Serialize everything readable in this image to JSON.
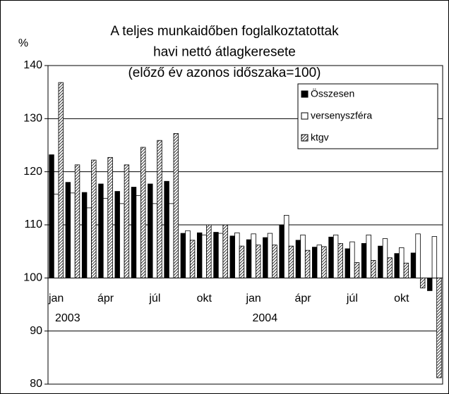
{
  "chart_data": {
    "type": "bar",
    "title": [
      "A teljes munkaidőben foglalkoztatottak",
      "havi nettó átlagkeresete",
      "(előző év azonos időszaka=100)"
    ],
    "y_label": "%",
    "categories": [
      "jan",
      null,
      null,
      "ápr",
      null,
      null,
      "júl",
      null,
      null,
      "okt",
      null,
      null,
      "jan",
      null,
      null,
      "ápr",
      null,
      null,
      "júl",
      null,
      null,
      "okt",
      null,
      null
    ],
    "category_groups": [
      {
        "label": "2003",
        "start": 0
      },
      {
        "label": "2004",
        "start": 12
      }
    ],
    "baseline": 100,
    "series": [
      {
        "name": "Összesen",
        "color": "#000000",
        "values": [
          123.2,
          118,
          116.1,
          117.7,
          116.3,
          117.1,
          117.7,
          118.2,
          108.4,
          108.5,
          108.6,
          107.9,
          107.2,
          107.6,
          109.9,
          107.1,
          105.8,
          107.7,
          105.5,
          106.5,
          106,
          104.6,
          104.7,
          97.6
        ]
      },
      {
        "name": "versenyszféra",
        "color": "#ffffff",
        "values": [
          115.8,
          116,
          113.2,
          115,
          114,
          115.5,
          114,
          114,
          108.9,
          108.1,
          108.4,
          108.5,
          108.3,
          108.4,
          111.8,
          108.1,
          106.2,
          108.1,
          106.8,
          108.1,
          107.4,
          105.7,
          108.3,
          107.8
        ]
      },
      {
        "name": "ktgv",
        "color": "#000000",
        "pattern": "hatch",
        "values": [
          136.8,
          121.3,
          122.2,
          122.7,
          121.3,
          124.6,
          125.9,
          127.2,
          107.1,
          110,
          110,
          106,
          106.2,
          106.2,
          106,
          105.2,
          105.9,
          106.5,
          102.9,
          103.3,
          103.8,
          102.8,
          98.1,
          81.2
        ]
      }
    ],
    "ylim": [
      80,
      140
    ],
    "yticks": [
      80,
      90,
      100,
      110,
      120,
      130,
      140
    ],
    "grid": true,
    "legend": "top-right"
  }
}
